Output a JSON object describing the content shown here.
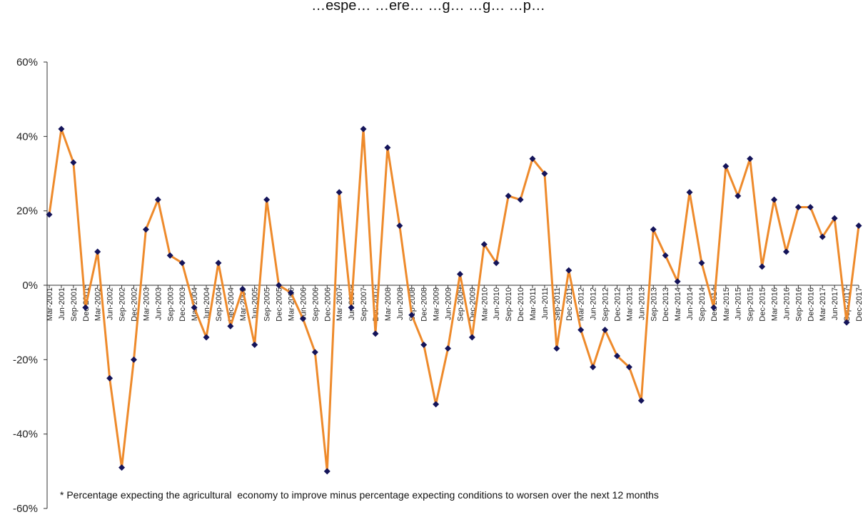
{
  "chart_data": {
    "type": "line",
    "title": "…espe…    …ere…    …g…    …g… …p…",
    "footnote": "* Percentage expecting the agricultural  economy to improve minus percentage expecting conditions to worsen over the next 12 months",
    "ylim": [
      -0.6,
      0.6
    ],
    "y_ticks": [
      {
        "value": 0.6,
        "label": "60%"
      },
      {
        "value": 0.4,
        "label": "40%"
      },
      {
        "value": 0.2,
        "label": "20%"
      },
      {
        "value": 0.0,
        "label": "0%"
      },
      {
        "value": -0.2,
        "label": "-20%"
      },
      {
        "value": -0.4,
        "label": "-40%"
      },
      {
        "value": -0.6,
        "label": "-60%"
      }
    ],
    "grid": false,
    "line_color": "#ee8a2b",
    "marker_color": "#14145a",
    "x": [
      "Mar-2001",
      "Jun-2001",
      "Sep-2001",
      "Dec-2001",
      "Mar-2002",
      "Jun-2002",
      "Sep-2002",
      "Dec-2002",
      "Mar-2003",
      "Jun-2003",
      "Sep-2003",
      "Dec-2003",
      "Mar-2004",
      "Jun-2004",
      "Sep-2004",
      "Dec-2004",
      "Mar-2005",
      "Jun-2005",
      "Sep-2005",
      "Dec-2005",
      "Mar-2006",
      "Jun-2006",
      "Sep-2006",
      "Dec-2006",
      "Mar-2007",
      "Jun-2007",
      "Sep-2007",
      "Dec-2007",
      "Mar-2008",
      "Jun-2008",
      "Sep-2008",
      "Dec-2008",
      "Mar-2009",
      "Jun-2009",
      "Sep-2009",
      "Dec-2009",
      "Mar-2010",
      "Jun-2010",
      "Sep-2010",
      "Dec-2010",
      "Mar-2011",
      "Jun-2011",
      "Sep-2011",
      "Dec-2011",
      "Mar-2012",
      "Jun-2012",
      "Sep-2012",
      "Dec-2012",
      "Mar-2013",
      "Jun-2013",
      "Sep-2013",
      "Dec-2013",
      "Mar-2014",
      "Jun-2014",
      "Sep-2014",
      "Dec-2014",
      "Mar-2015",
      "Jun-2015",
      "Sep-2015",
      "Dec-2015",
      "Mar-2016",
      "Jun-2016",
      "Sep-2016",
      "Dec-2016",
      "Mar-2017",
      "Jun-2017",
      "Sep-2017",
      "Dec-2017"
    ],
    "series": [
      {
        "values": [
          0.19,
          0.42,
          0.33,
          -0.06,
          0.09,
          -0.25,
          -0.49,
          -0.2,
          0.15,
          0.23,
          0.08,
          0.06,
          -0.06,
          -0.14,
          0.06,
          -0.11,
          -0.01,
          -0.16,
          0.23,
          0.0,
          -0.02,
          -0.09,
          -0.18,
          -0.5,
          0.25,
          -0.06,
          0.42,
          -0.13,
          0.37,
          0.16,
          -0.08,
          -0.16,
          -0.32,
          -0.17,
          0.03,
          -0.14,
          0.11,
          0.06,
          0.24,
          0.23,
          0.34,
          0.3,
          -0.17,
          0.04,
          -0.12,
          -0.22,
          -0.12,
          -0.19,
          -0.22,
          -0.31,
          0.15,
          0.08,
          0.01,
          0.25,
          0.06,
          -0.06,
          0.32,
          0.24,
          0.34,
          0.05,
          0.23,
          0.09,
          0.21,
          0.21,
          0.13,
          0.18,
          -0.1,
          0.16
        ]
      }
    ]
  }
}
